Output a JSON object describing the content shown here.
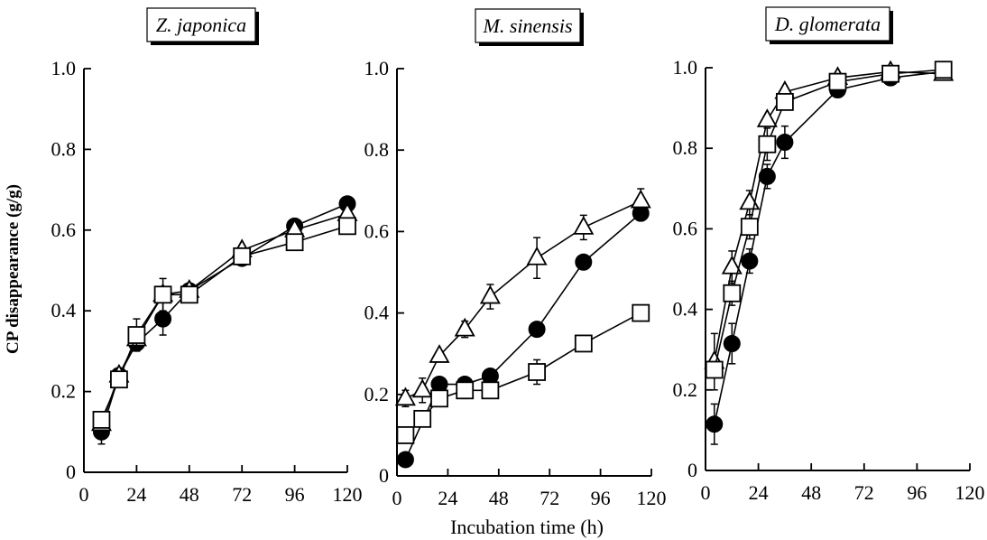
{
  "figure": {
    "ylabel": "CP disappearance (g/g)",
    "xlabel": "Incubation time  (h)"
  },
  "chart_data": [
    {
      "type": "line",
      "title": "Z.  japonica",
      "xlim": [
        0,
        120
      ],
      "ylim": [
        0,
        1.0
      ],
      "xticks": [
        0,
        24,
        48,
        72,
        96,
        120
      ],
      "xtick_labels": [
        "0",
        "24",
        "48",
        "72",
        "96",
        "120"
      ],
      "yticks": [
        0,
        0.2,
        0.4,
        0.6,
        0.8,
        1.0
      ],
      "ytick_labels": [
        "0",
        "0.2",
        "0.4",
        "0.6",
        "0.8",
        "1.0"
      ],
      "series": [
        {
          "marker": "circle",
          "fill": "#000000",
          "x": [
            8,
            16,
            24,
            36,
            48,
            72,
            96,
            120
          ],
          "y": [
            0.1,
            0.24,
            0.32,
            0.38,
            0.45,
            0.53,
            0.61,
            0.665
          ],
          "err": [
            0.03,
            0,
            0,
            0.04,
            0,
            0,
            0,
            0
          ]
        },
        {
          "marker": "triangle",
          "fill": "#ffffff",
          "x": [
            8,
            16,
            24,
            36,
            48,
            72,
            96,
            120
          ],
          "y": [
            0.12,
            0.24,
            0.33,
            0.44,
            0.45,
            0.55,
            0.6,
            0.64
          ],
          "err": [
            0,
            0,
            0,
            0,
            0,
            0,
            0,
            0
          ]
        },
        {
          "marker": "square",
          "fill": "#ffffff",
          "x": [
            8,
            16,
            24,
            36,
            48,
            72,
            96,
            120
          ],
          "y": [
            0.13,
            0.23,
            0.34,
            0.44,
            0.44,
            0.535,
            0.57,
            0.61
          ],
          "err": [
            0,
            0.02,
            0.04,
            0.04,
            0.02,
            0,
            0,
            0
          ]
        }
      ]
    },
    {
      "type": "line",
      "title": "M.  sinensis",
      "xlim": [
        0,
        120
      ],
      "ylim": [
        0,
        1.0
      ],
      "xticks": [
        0,
        24,
        48,
        72,
        96,
        120
      ],
      "xtick_labels": [
        "0",
        "24",
        "48",
        "72",
        "96",
        "120"
      ],
      "yticks": [
        0,
        0.2,
        0.4,
        0.6,
        0.8,
        1.0
      ],
      "ytick_labels": [
        "0",
        "0.2",
        "0.4",
        "0.6",
        "0.8",
        "1.0"
      ],
      "series": [
        {
          "marker": "circle",
          "fill": "#000000",
          "x": [
            4,
            20,
            32,
            44,
            66,
            88,
            115
          ],
          "y": [
            0.04,
            0.225,
            0.225,
            0.245,
            0.36,
            0.525,
            0.645
          ],
          "err": [
            0,
            0,
            0,
            0,
            0,
            0,
            0
          ]
        },
        {
          "marker": "triangle",
          "fill": "#ffffff",
          "x": [
            4,
            12,
            20,
            32,
            44,
            66,
            88,
            115
          ],
          "y": [
            0.19,
            0.21,
            0.295,
            0.36,
            0.44,
            0.535,
            0.61,
            0.675
          ],
          "err": [
            0.02,
            0.03,
            0,
            0.02,
            0.03,
            0.05,
            0.03,
            0.03
          ]
        },
        {
          "marker": "square",
          "fill": "#ffffff",
          "x": [
            4,
            12,
            20,
            32,
            44,
            66,
            88,
            115
          ],
          "y": [
            0.1,
            0.14,
            0.19,
            0.21,
            0.21,
            0.255,
            0.325,
            0.4
          ],
          "err": [
            0,
            0,
            0,
            0.02,
            0,
            0.03,
            0,
            0
          ]
        }
      ]
    },
    {
      "type": "line",
      "title": "D.  glomerata",
      "xlim": [
        0,
        120
      ],
      "ylim": [
        0,
        1.0
      ],
      "xticks": [
        0,
        24,
        48,
        72,
        96,
        120
      ],
      "xtick_labels": [
        "0",
        "24",
        "48",
        "72",
        "96",
        "120"
      ],
      "yticks": [
        0,
        0.2,
        0.4,
        0.6,
        0.8,
        1.0
      ],
      "ytick_labels": [
        "0",
        "0.2",
        "0.4",
        "0.6",
        "0.8",
        "1.0"
      ],
      "series": [
        {
          "marker": "circle",
          "fill": "#000000",
          "x": [
            4,
            12,
            20,
            28,
            36,
            60,
            84,
            108
          ],
          "y": [
            0.115,
            0.315,
            0.52,
            0.73,
            0.815,
            0.945,
            0.975,
            0.99
          ],
          "err": [
            0.05,
            0.05,
            0.03,
            0.03,
            0.04,
            0,
            0,
            0
          ]
        },
        {
          "marker": "triangle",
          "fill": "#ffffff",
          "x": [
            4,
            12,
            20,
            28,
            36,
            60,
            84,
            108
          ],
          "y": [
            0.27,
            0.505,
            0.665,
            0.87,
            0.94,
            0.975,
            0.99,
            0.985
          ],
          "err": [
            0.07,
            0.04,
            0.03,
            0,
            0,
            0,
            0,
            0
          ]
        },
        {
          "marker": "square",
          "fill": "#ffffff",
          "x": [
            4,
            12,
            20,
            28,
            36,
            60,
            84,
            108
          ],
          "y": [
            0.25,
            0.44,
            0.605,
            0.81,
            0.915,
            0.965,
            0.985,
            0.995
          ],
          "err": [
            0,
            0.03,
            0.03,
            0.04,
            0,
            0,
            0,
            0
          ]
        }
      ]
    }
  ]
}
